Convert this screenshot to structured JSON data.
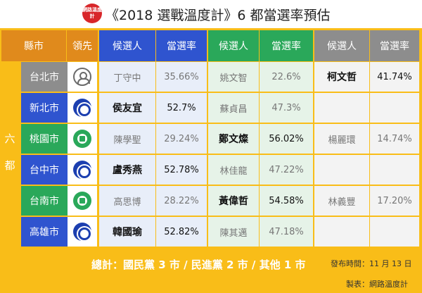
{
  "header": {
    "title": "《2018 選戰溫度計》6 都當選率預估",
    "logo_text": "網路溫度計"
  },
  "columns": [
    "縣市",
    "領先",
    "候選人",
    "當選率",
    "候選人",
    "當選率",
    "候選人",
    "當選率"
  ],
  "side_label": [
    "六",
    "都"
  ],
  "colors": {
    "frame": "#f9bd18",
    "kmt": "#2f54cf",
    "dpp": "#2aa85a",
    "independent": "#8d8d8d",
    "header_city": "#e08a1c"
  },
  "chart_data": {
    "type": "table",
    "title": "《2018 選戰溫度計》6 都當選率預估",
    "rows": [
      {
        "city": "台北市",
        "leader": "independent",
        "kmt_candidate": "丁守中",
        "kmt_rate": "35.66%",
        "dpp_candidate": "姚文智",
        "dpp_rate": "22.6%",
        "other_candidate": "柯文哲",
        "other_rate": "41.74%"
      },
      {
        "city": "新北市",
        "leader": "kmt",
        "kmt_candidate": "侯友宜",
        "kmt_rate": "52.7%",
        "dpp_candidate": "蘇貞昌",
        "dpp_rate": "47.3%",
        "other_candidate": "",
        "other_rate": ""
      },
      {
        "city": "桃園市",
        "leader": "dpp",
        "kmt_candidate": "陳學聖",
        "kmt_rate": "29.24%",
        "dpp_candidate": "鄭文燦",
        "dpp_rate": "56.02%",
        "other_candidate": "楊麗環",
        "other_rate": "14.74%"
      },
      {
        "city": "台中市",
        "leader": "kmt",
        "kmt_candidate": "盧秀燕",
        "kmt_rate": "52.78%",
        "dpp_candidate": "林佳龍",
        "dpp_rate": "47.22%",
        "other_candidate": "",
        "other_rate": ""
      },
      {
        "city": "台南市",
        "leader": "dpp",
        "kmt_candidate": "高思博",
        "kmt_rate": "28.22%",
        "dpp_candidate": "黃偉哲",
        "dpp_rate": "54.58%",
        "other_candidate": "林義豐",
        "other_rate": "17.20%"
      },
      {
        "city": "高雄市",
        "leader": "kmt",
        "kmt_candidate": "韓國瑜",
        "kmt_rate": "52.82%",
        "dpp_candidate": "陳其邁",
        "dpp_rate": "47.18%",
        "other_candidate": "",
        "other_rate": ""
      }
    ]
  },
  "footer": {
    "summary": "總計：國民黨 3 市 / 民進黨 2 市 / 其他 1 市",
    "published": "發布時間：11 月 13 日",
    "maker": "製表：網路溫度計"
  }
}
